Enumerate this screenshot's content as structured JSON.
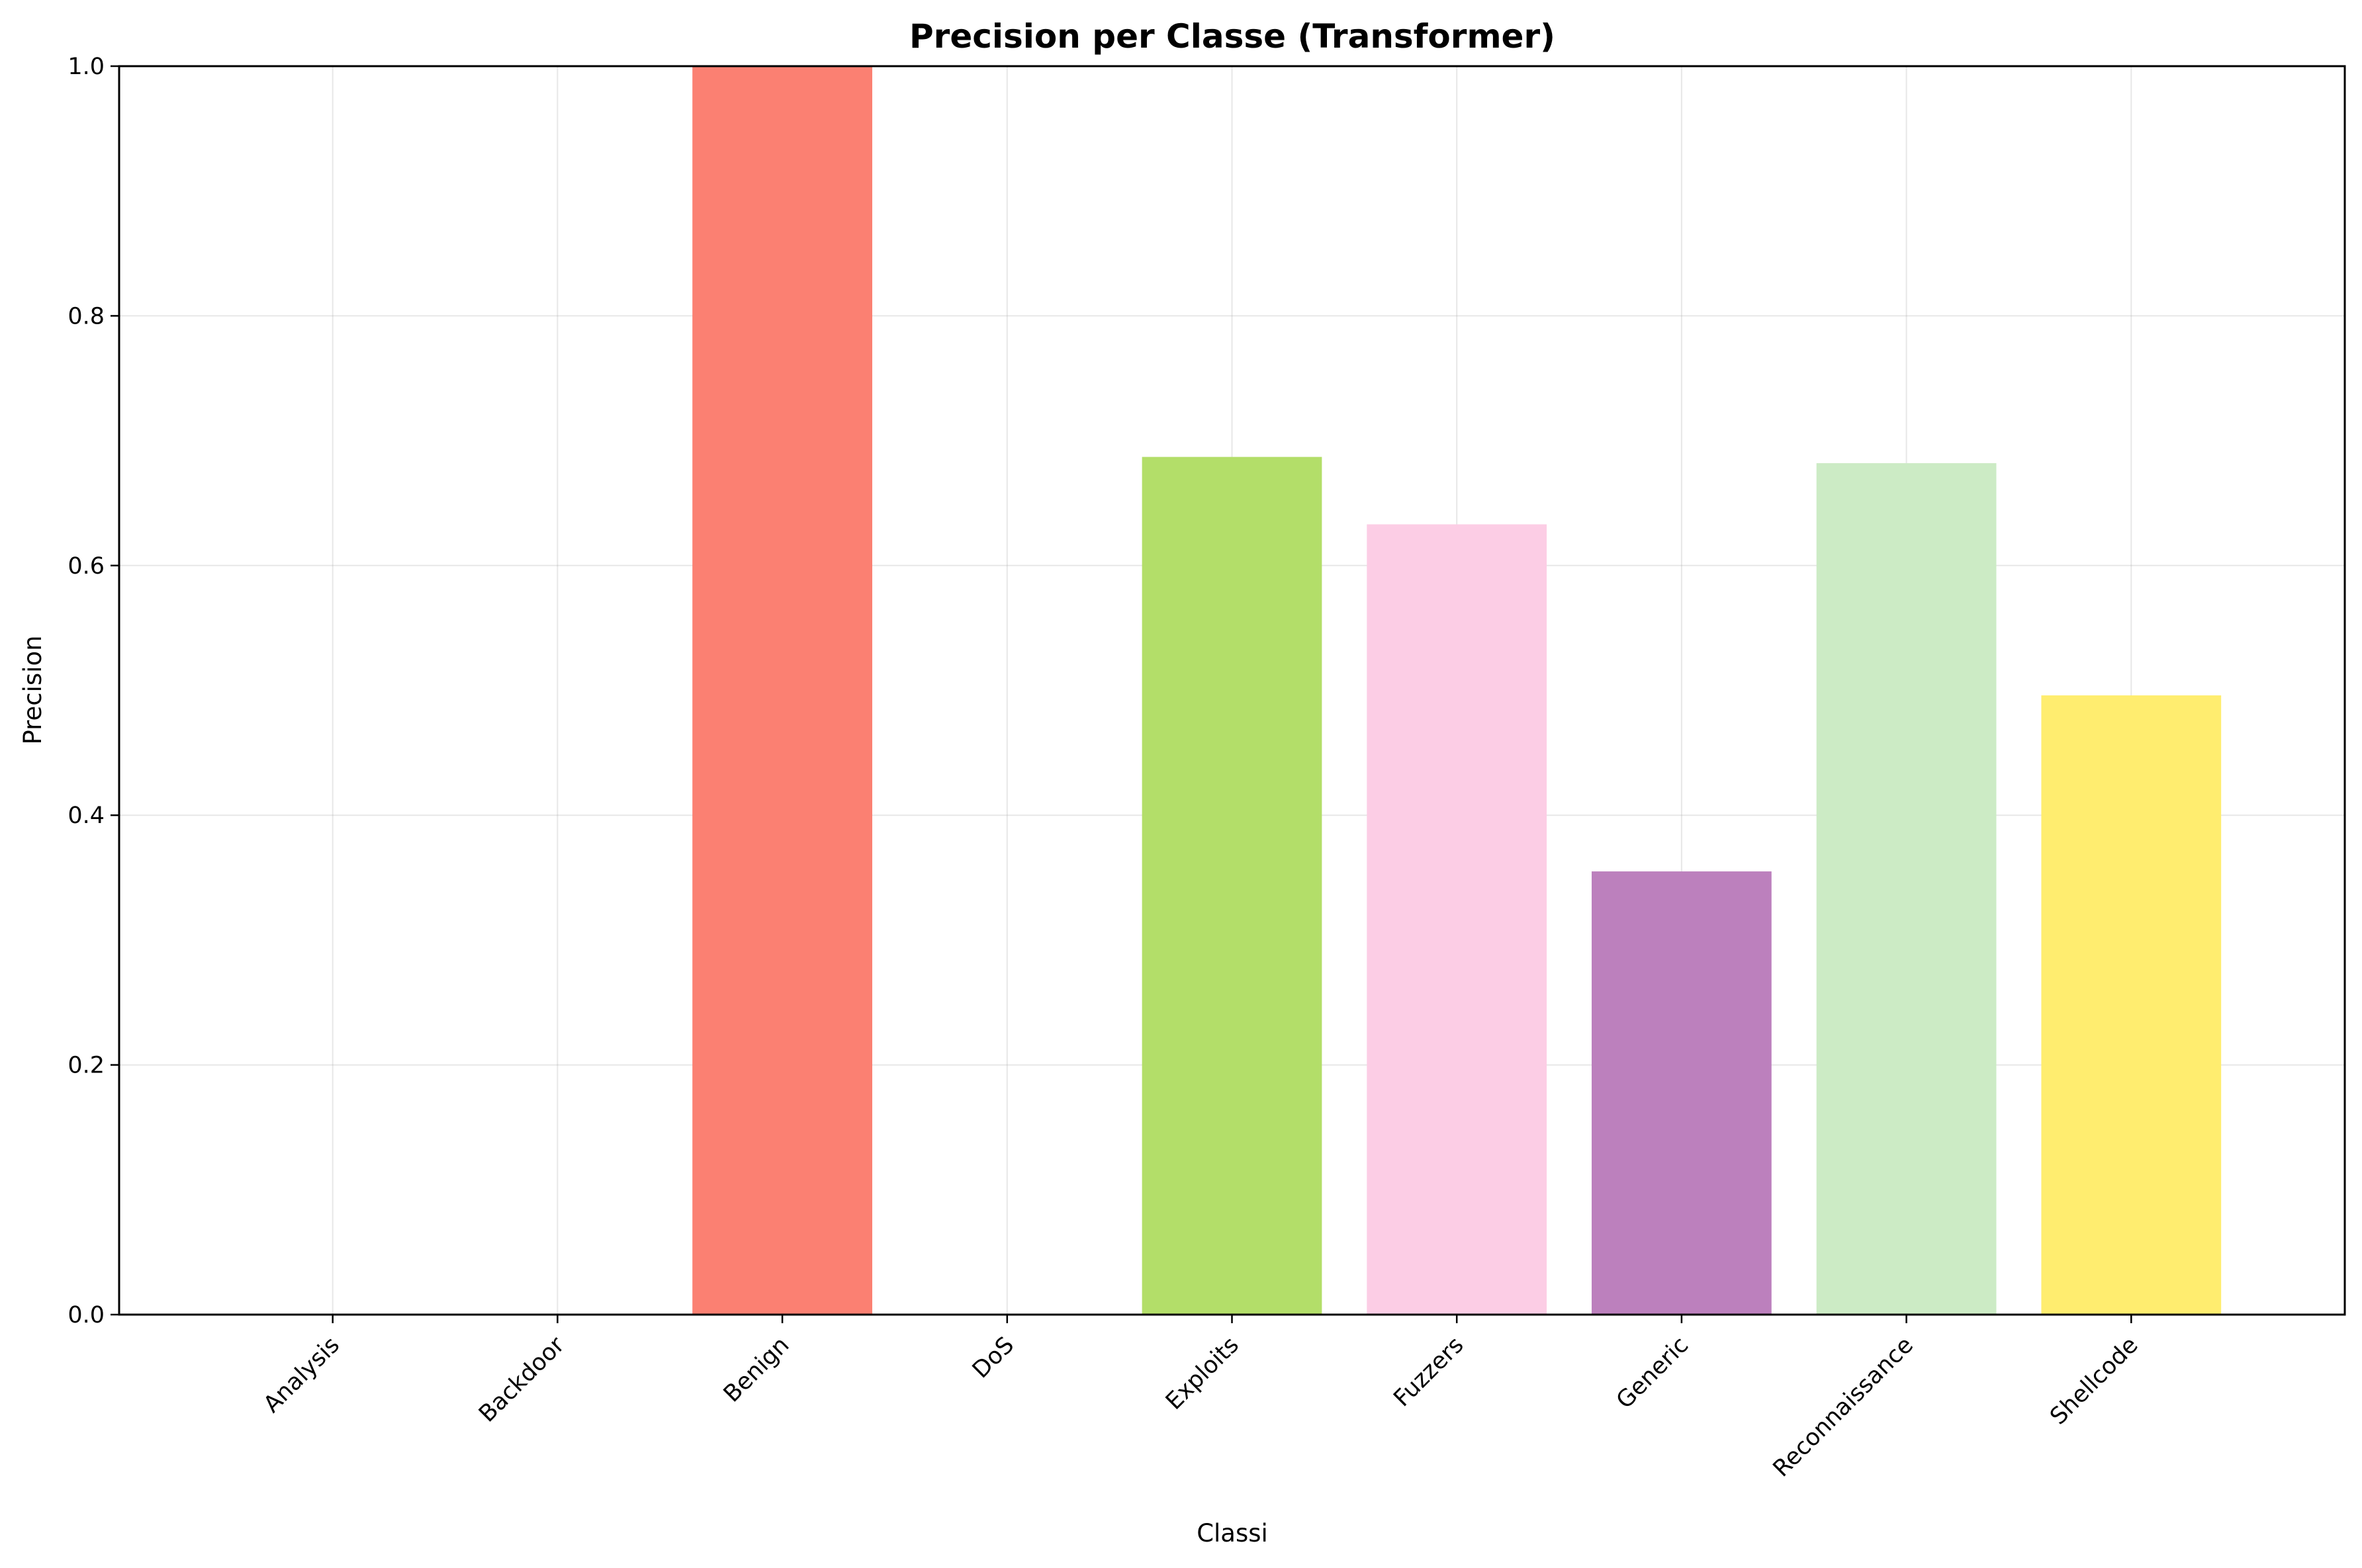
{
  "chart_data": {
    "type": "bar",
    "title": "Precision per Classe (Transformer)",
    "xlabel": "Classi",
    "ylabel": "Precision",
    "ylim": [
      0,
      1.0
    ],
    "yticks": [
      "0.0",
      "0.2",
      "0.4",
      "0.6",
      "0.8",
      "1.0"
    ],
    "grid": true,
    "categories": [
      "Analysis",
      "Backdoor",
      "Benign",
      "DoS",
      "Exploits",
      "Fuzzers",
      "Generic",
      "Reconnaissance",
      "Shellcode"
    ],
    "values": [
      0.0,
      0.0,
      1.0,
      0.0,
      0.687,
      0.633,
      0.355,
      0.682,
      0.496
    ],
    "colors": [
      "#8dd3c7",
      "#ffffb3",
      "#fb8072",
      "#bebada",
      "#b3de69",
      "#fccde5",
      "#bc80bd",
      "#ccebc5",
      "#ffed6f"
    ]
  }
}
